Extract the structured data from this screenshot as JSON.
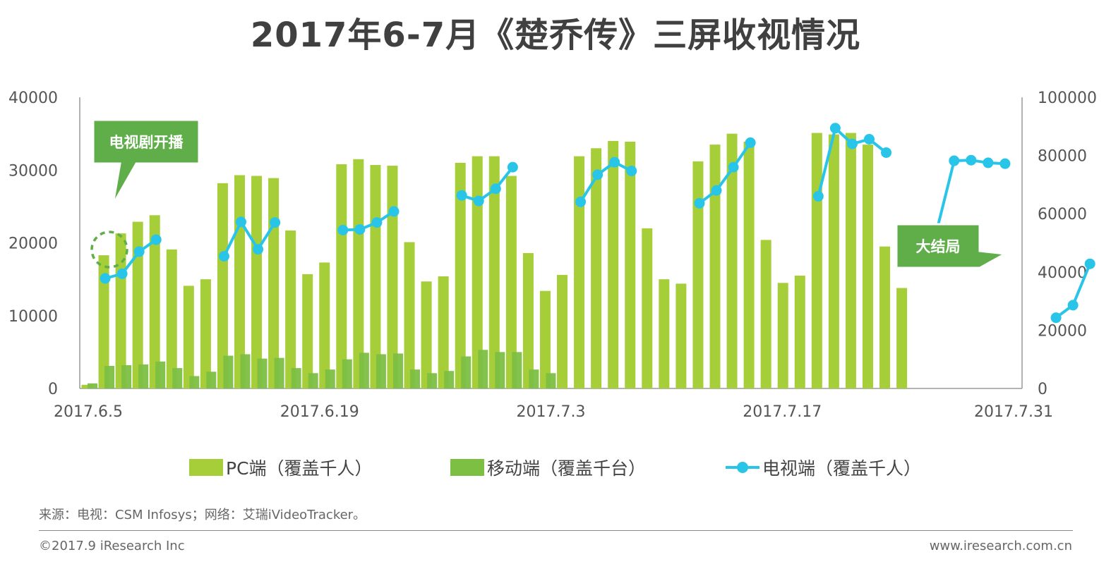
{
  "title": "2017年6-7月《楚乔传》三屏收视情况",
  "colors": {
    "pc": "#a6ce39",
    "mobile": "#7cbf42",
    "tv": "#29c5e8",
    "callout": "#5fae4a"
  },
  "chart_data": {
    "type": "bar",
    "x_tick_labels": [
      "2017.6.5",
      "2017.6.19",
      "2017.7.3",
      "2017.7.17",
      "2017.7.31"
    ],
    "y_left_ticks": [
      "0",
      "10000",
      "20000",
      "30000",
      "40000"
    ],
    "y_right_ticks": [
      "0",
      "20000",
      "40000",
      "60000",
      "80000",
      "100000"
    ],
    "ylim_left": [
      0,
      40000
    ],
    "ylim_right": [
      0,
      100000
    ],
    "annotations": [
      "电视剧开播",
      "大结局"
    ],
    "legend": [
      "PC端（覆盖千人）",
      "移动端（覆盖千台）",
      "电视端（覆盖千人）"
    ],
    "legend_position": "bottom",
    "series": [
      {
        "name": "PC端（覆盖千人）",
        "axis": "left",
        "values": [
          500,
          18300,
          21300,
          22900,
          23800,
          19100,
          14100,
          15000,
          28200,
          29300,
          29200,
          28900,
          21700,
          15700,
          17300,
          30800,
          31500,
          30700,
          30600,
          20100,
          14700,
          15400,
          31000,
          31900,
          31900,
          29200,
          18600,
          13400,
          15600,
          31900,
          33000,
          34000,
          33900,
          22000,
          15000,
          14400,
          31200,
          33500,
          35000,
          33900,
          20400,
          14500,
          15500,
          35100,
          34900,
          35100,
          33500,
          19500,
          13800
        ]
      },
      {
        "name": "移动端（覆盖千台）",
        "axis": "left",
        "values": [
          700,
          3100,
          3200,
          3300,
          3700,
          2800,
          1700,
          2300,
          4500,
          4700,
          4100,
          4200,
          2800,
          2100,
          2600,
          4000,
          4900,
          4700,
          4800,
          2600,
          2100,
          2400,
          4400,
          5300,
          5000,
          5000,
          2600,
          2100
        ]
      },
      {
        "name": "电视端（覆盖千人）",
        "axis": "right",
        "points": [
          [
            1,
            37800
          ],
          [
            2,
            39400
          ],
          [
            3,
            47000
          ],
          [
            4,
            51100
          ],
          [
            8,
            45400
          ],
          [
            9,
            57200
          ],
          [
            10,
            47800
          ],
          [
            11,
            57000
          ],
          [
            15,
            54400
          ],
          [
            16,
            54600
          ],
          [
            17,
            57000
          ],
          [
            18,
            60800
          ],
          [
            22,
            66300
          ],
          [
            23,
            64400
          ],
          [
            24,
            68600
          ],
          [
            25,
            76000
          ],
          [
            29,
            64100
          ],
          [
            30,
            73400
          ],
          [
            31,
            77700
          ],
          [
            32,
            74700
          ],
          [
            36,
            63600
          ],
          [
            37,
            68000
          ],
          [
            38,
            76000
          ],
          [
            39,
            84400
          ],
          [
            43,
            66000
          ],
          [
            44,
            89400
          ],
          [
            45,
            84000
          ],
          [
            46,
            85600
          ],
          [
            47,
            81000
          ],
          [
            50,
            54800
          ],
          [
            51,
            78200
          ],
          [
            52,
            78400
          ],
          [
            53,
            77500
          ],
          [
            54,
            77200
          ],
          [
            57,
            24300
          ],
          [
            58,
            28600
          ],
          [
            59,
            42800
          ]
        ]
      }
    ]
  },
  "footer": {
    "source": "来源：电视：CSM Infosys；网络：艾瑞iVideoTracker。",
    "copyright": "©2017.9 iResearch Inc",
    "website": "www.iresearch.com.cn"
  }
}
